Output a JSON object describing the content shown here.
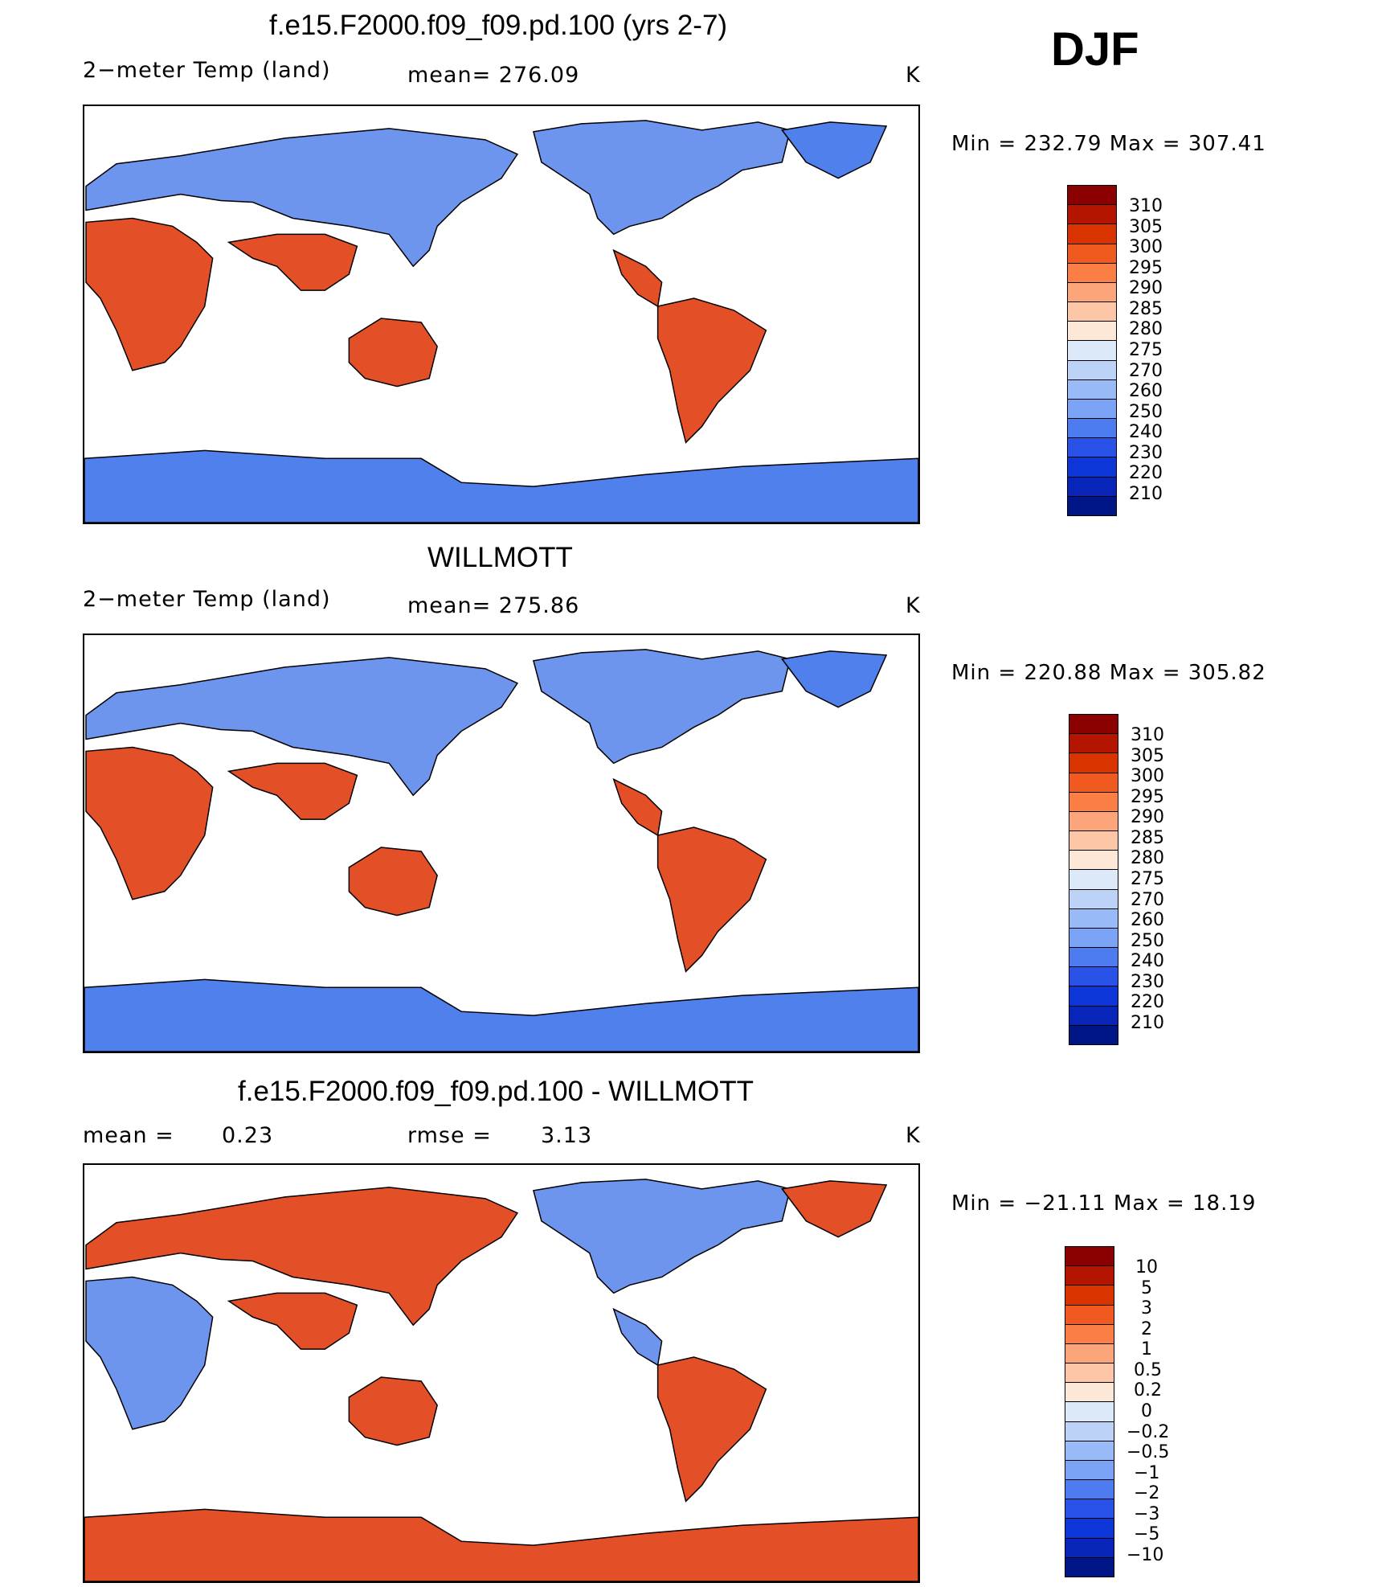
{
  "season": "DJF",
  "panels": [
    {
      "title": "f.e15.F2000.f09_f09.pd.100 (yrs 2-7)",
      "left_label": "2−meter Temp (land)",
      "mean_label": "mean= 276.09",
      "units": "K",
      "minmax": "Min = 232.79 Max = 307.41",
      "colorbar_labels": [
        "310",
        "305",
        "300",
        "295",
        "290",
        "285",
        "280",
        "275",
        "270",
        "260",
        "250",
        "240",
        "230",
        "220",
        "210"
      ]
    },
    {
      "title": "WILLMOTT",
      "left_label": "2−meter Temp (land)",
      "mean_label": "mean= 275.86",
      "units": "K",
      "minmax": "Min = 220.88 Max = 305.82",
      "colorbar_labels": [
        "310",
        "305",
        "300",
        "295",
        "290",
        "285",
        "280",
        "275",
        "270",
        "260",
        "250",
        "240",
        "230",
        "220",
        "210"
      ]
    },
    {
      "title": "f.e15.F2000.f09_f09.pd.100 - WILLMOTT",
      "left_label": "mean =",
      "left_value": "0.23",
      "mean_label": "rmse =",
      "rmse_value": "3.13",
      "units": "K",
      "minmax": "Min = −21.11 Max = 18.19",
      "colorbar_labels": [
        "10",
        "5",
        "3",
        "2",
        "1",
        "0.5",
        "0.2",
        "0",
        "−0.2",
        "−0.5",
        "−1",
        "−2",
        "−3",
        "−5",
        "−10"
      ]
    }
  ],
  "colors": {
    "abs_scale": [
      "#8b0000",
      "#b31500",
      "#d93300",
      "#f05a1e",
      "#fb7e44",
      "#fca47a",
      "#fdc6a7",
      "#fde8d8",
      "#dbe9f8",
      "#bcd3f7",
      "#98baf6",
      "#7aa2f5",
      "#4d7cf1",
      "#2952e8",
      "#0d36d8",
      "#0725b8",
      "#001586"
    ],
    "land_warm": "#e34f27",
    "land_cool": "#6e95ee",
    "antarctic": "#4f80ec"
  }
}
